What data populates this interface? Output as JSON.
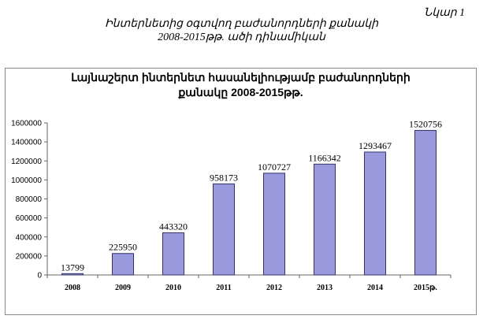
{
  "figure_label": "Նկար 1",
  "doc_title_line1": "Ինտերնետից օգտվող բաժանորդների քանակի",
  "doc_title_line2": "2008-2015թթ. ածի դինամիկան",
  "chart_data": {
    "type": "bar",
    "title_line1": "Լայնաշերտ ինտերնետ հասանելիությամբ բաժանորդների",
    "title_line2": "քանակը 2008-2015թթ.",
    "categories": [
      "2008",
      "2009",
      "2010",
      "2011",
      "2012",
      "2013",
      "2014",
      "2015թ."
    ],
    "values": [
      13799,
      225950,
      443320,
      958173,
      1070727,
      1166342,
      1293467,
      1520756
    ],
    "y_ticks": [
      "0",
      "200000",
      "400000",
      "600000",
      "800000",
      "1000000",
      "1200000",
      "1400000",
      "1600000"
    ],
    "ylim": [
      0,
      1600000
    ],
    "grid": false,
    "bar_color": "#9999dd",
    "bar_stroke": "#333366"
  }
}
